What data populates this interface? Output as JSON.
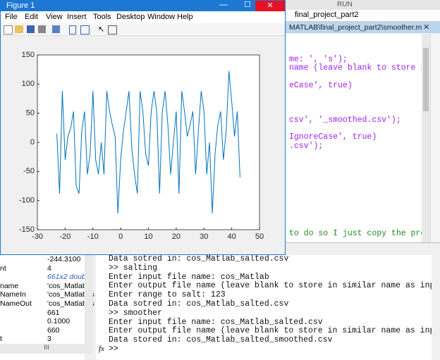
{
  "figure_window": {
    "title": "Figure 1",
    "menu": [
      "File",
      "Edit",
      "View",
      "Insert",
      "Tools",
      "Desktop",
      "Window",
      "Help"
    ]
  },
  "editor": {
    "run_tab": "RUN",
    "file_tab": "final_project_part2",
    "path": "MATLAB\\final_project_part2\\smoother.m",
    "code_lines": [
      "me: ', 's');",
      "name (leave blank to store in simila",
      "eCase', true)",
      "csv', '_smoothed.csv');",
      "IgnoreCase', true)",
      ".csv');",
      "to do so I just copy the process"
    ]
  },
  "workspace": {
    "rows": [
      {
        "value": "-244.3100"
      },
      {
        "name": "nt",
        "value": "4"
      },
      {
        "value": "661x2 double"
      },
      {
        "name": "name",
        "value": "'cos_Matlab.c"
      },
      {
        "name": "NameIn",
        "value": "'cos_Matlab_s"
      },
      {
        "name": "NameOut",
        "value": "'cos_Matlab_s"
      },
      {
        "value": "661"
      },
      {
        "value": "0.1000"
      },
      {
        "value": "660"
      },
      {
        "name": "t",
        "value": "3"
      }
    ]
  },
  "command_window": {
    "lines": [
      "Data sotred in: cos_Matlab_salted.csv",
      ">> salting",
      "Enter input file name: cos_Matlab",
      "Enter output file name (leave blank to store in similar name as input):",
      "Enter range to salt: 123",
      "Data sotred in: cos_Matlab_salted.csv",
      ">> smoother",
      "Enter input file name: cos_Matlab_salted.csv",
      "Enter output file name (leave blank to store in similar name as input):",
      "Data stored in: cos_Matlab_salted_smoothed.csv"
    ],
    "prompt_icon": "fx",
    "prompt": ">>"
  },
  "chart_data": {
    "type": "line",
    "color": "#0072bd",
    "x": [
      -23,
      -22,
      -21,
      -20,
      -19,
      -18,
      -17,
      -16,
      -15,
      -14,
      -13,
      -12,
      -11,
      -10,
      -9,
      -8,
      -7,
      -6,
      -5,
      -4,
      -3,
      -2,
      -1,
      0,
      1,
      2,
      3,
      4,
      5,
      6,
      7,
      8,
      9,
      10,
      11,
      12,
      13,
      14,
      15,
      16,
      17,
      18,
      19,
      20,
      21,
      22,
      23,
      24,
      25,
      26,
      27,
      28,
      29,
      30,
      31,
      32,
      33,
      34,
      35,
      36,
      37,
      38,
      39,
      40,
      41,
      42,
      43
    ],
    "values": [
      15,
      -88,
      88,
      -30,
      10,
      25,
      53,
      -75,
      -88,
      20,
      53,
      -55,
      -20,
      88,
      -30,
      -55,
      0,
      -55,
      88,
      53,
      30,
      10,
      -122,
      -30,
      20,
      53,
      88,
      -10,
      -55,
      -88,
      88,
      53,
      -20,
      -40,
      53,
      88,
      53,
      -88,
      53,
      88,
      30,
      -55,
      0,
      53,
      -88,
      88,
      53,
      10,
      30,
      53,
      -55,
      20,
      88,
      53,
      -55,
      0,
      -122,
      -20,
      30,
      53,
      -30,
      20,
      122,
      70,
      10,
      53,
      -60
    ],
    "xlim": [
      -30,
      50
    ],
    "ylim": [
      -150,
      150
    ],
    "xticks": [
      -30,
      -20,
      -10,
      0,
      10,
      20,
      30,
      40,
      50
    ],
    "yticks": [
      -150,
      -100,
      -50,
      0,
      50,
      100,
      150
    ]
  }
}
